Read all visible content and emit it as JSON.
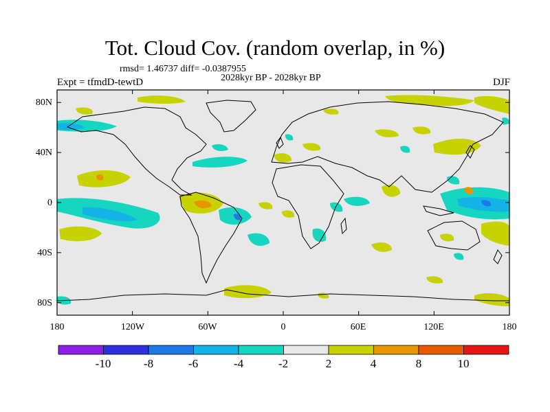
{
  "header": {
    "title": "Tot. Cloud Cov. (random overlap, in %)",
    "stats": "rmsd= 1.46737 diff= -0.0387955",
    "period": "2028kyr BP - 2028kyr BP",
    "experiment": "Expt = tfmdD-tewtD",
    "season": "DJF"
  },
  "axes": {
    "x_ticks": [
      "180",
      "120W",
      "60W",
      "0",
      "60E",
      "120E",
      "180"
    ],
    "y_ticks": [
      "80N",
      "40N",
      "0",
      "40S",
      "80S"
    ],
    "x_values": [
      -180,
      -120,
      -60,
      0,
      60,
      120,
      180
    ],
    "y_values": [
      80,
      40,
      0,
      -40,
      -80
    ]
  },
  "colorbar": {
    "tick_labels": [
      "-10",
      "-8",
      "-6",
      "-4",
      "-2",
      "2",
      "4",
      "8",
      "10"
    ],
    "colors": [
      "#8c1ee6",
      "#2f2fe0",
      "#1e78e6",
      "#12b4e6",
      "#16d6c0",
      "#e8e8e8",
      "#c8d200",
      "#e69600",
      "#e65a00",
      "#e61414"
    ]
  },
  "map": {
    "background_color": "#e8e8e8",
    "projection": "cylindrical-equidistant",
    "lon_range": [
      -180,
      180
    ],
    "lat_range": [
      -90,
      90
    ]
  }
}
